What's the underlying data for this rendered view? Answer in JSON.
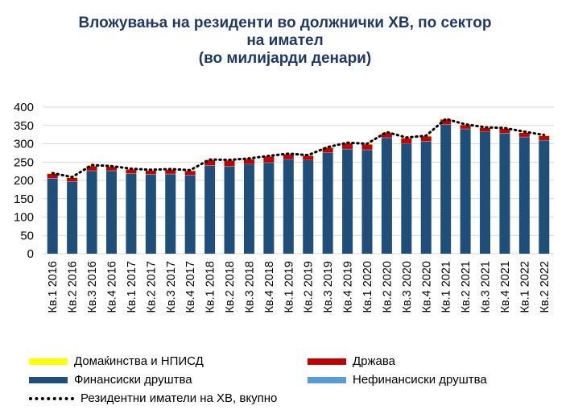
{
  "title": {
    "line1": "Вложувања на резиденти во должнички ХВ, по сектор",
    "line2": "на имател",
    "line3": "(во милијарди денари)"
  },
  "chart_data": {
    "type": "bar",
    "stacked": true,
    "ylim": [
      0,
      400
    ],
    "yticks": [
      0,
      50,
      100,
      150,
      200,
      250,
      300,
      350,
      400
    ],
    "grid": true,
    "categories": [
      "Кв.1 2016",
      "Кв.2 2016",
      "Кв.3 2016",
      "Кв.4 2016",
      "Кв.1 2017",
      "Кв.2 2017",
      "Кв.3 2017",
      "Кв.4 2017",
      "Кв.1 2018",
      "Кв.2 2018",
      "Кв.3 2018",
      "Кв.4 2018",
      "Кв.1 2019",
      "Кв.2 2019",
      "Кв.3 2019",
      "Кв.4 2019",
      "Кв.1 2020",
      "Кв.2 2020",
      "Кв.3 2020",
      "Кв.4 2020",
      "Кв.1 2021",
      "Кв.2 2021",
      "Кв.3 2021",
      "Кв.4 2021",
      "Кв.1 2022",
      "Кв.2 2022"
    ],
    "series": [
      {
        "name": "Финансиски друштва",
        "color": "#1f4e79",
        "values": [
          205,
          196,
          226,
          226,
          218,
          216,
          217,
          214,
          240,
          238,
          244,
          248,
          257,
          255,
          275,
          285,
          283,
          316,
          300,
          306,
          352,
          340,
          332,
          328,
          318,
          309
        ]
      },
      {
        "name": "Нефинансиски друштва",
        "color": "#5b9bd5",
        "values": [
          1,
          1,
          1,
          1,
          1,
          1,
          1,
          1,
          1,
          1,
          1,
          1,
          1,
          1,
          1,
          1,
          1,
          1,
          1,
          1,
          1,
          1,
          1,
          1,
          1,
          1
        ]
      },
      {
        "name": "Држава",
        "color": "#c00000",
        "values": [
          12,
          10,
          12,
          10,
          11,
          10,
          11,
          11,
          14,
          15,
          13,
          16,
          13,
          11,
          13,
          15,
          14,
          12,
          14,
          13,
          13,
          10,
          10,
          12,
          11,
          11
        ]
      },
      {
        "name": "Домаќинства и НПИСД",
        "color": "#ffff00",
        "values": [
          2,
          2,
          3,
          2,
          2,
          2,
          2,
          2,
          2,
          2,
          2,
          2,
          2,
          2,
          2,
          2,
          2,
          3,
          2,
          2,
          2,
          2,
          2,
          2,
          3,
          3
        ]
      }
    ],
    "total_series": {
      "name": "Резидентни иматели на ХВ, вкупно",
      "values": [
        220,
        209,
        242,
        239,
        232,
        229,
        231,
        228,
        257,
        256,
        260,
        267,
        273,
        269,
        291,
        303,
        300,
        332,
        317,
        322,
        368,
        353,
        345,
        343,
        333,
        324
      ]
    },
    "legend": [
      "Домаќинства и НПИСД",
      "Држава",
      "Финансиски друштва",
      "Нефинансиски друштва",
      "Резидентни иматели на ХВ, вкупно"
    ]
  }
}
